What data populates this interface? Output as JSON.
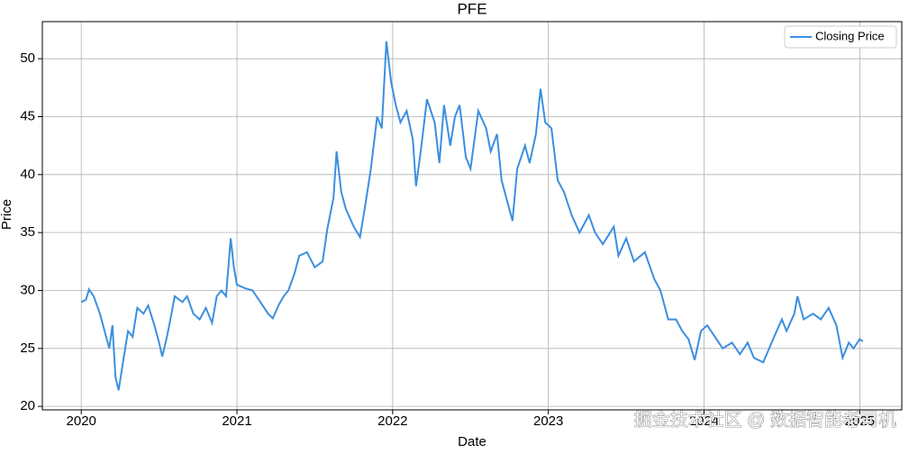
{
  "chart_data": {
    "type": "line",
    "title": "PFE",
    "x_label": "Date",
    "y_label": "Price",
    "x": [
      2020.0,
      2020.03,
      2020.05,
      2020.08,
      2020.12,
      2020.15,
      2020.18,
      2020.2,
      2020.22,
      2020.24,
      2020.27,
      2020.3,
      2020.33,
      2020.36,
      2020.4,
      2020.43,
      2020.47,
      2020.5,
      2020.52,
      2020.55,
      2020.58,
      2020.6,
      2020.65,
      2020.68,
      2020.72,
      2020.76,
      2020.8,
      2020.84,
      2020.87,
      2020.9,
      2020.93,
      2020.96,
      2020.98,
      2021.0,
      2021.05,
      2021.1,
      2021.15,
      2021.2,
      2021.23,
      2021.27,
      2021.3,
      2021.33,
      2021.37,
      2021.4,
      2021.45,
      2021.5,
      2021.55,
      2021.58,
      2021.62,
      2021.64,
      2021.67,
      2021.7,
      2021.75,
      2021.79,
      2021.82,
      2021.86,
      2021.9,
      2021.93,
      2021.96,
      2021.99,
      2022.02,
      2022.05,
      2022.09,
      2022.13,
      2022.15,
      2022.18,
      2022.22,
      2022.27,
      2022.3,
      2022.33,
      2022.37,
      2022.4,
      2022.43,
      2022.47,
      2022.5,
      2022.55,
      2022.6,
      2022.63,
      2022.67,
      2022.7,
      2022.73,
      2022.77,
      2022.8,
      2022.85,
      2022.88,
      2022.92,
      2022.95,
      2022.98,
      2023.02,
      2023.06,
      2023.1,
      2023.15,
      2023.2,
      2023.26,
      2023.3,
      2023.35,
      2023.42,
      2023.45,
      2023.5,
      2023.55,
      2023.62,
      2023.68,
      2023.72,
      2023.77,
      2023.82,
      2023.86,
      2023.9,
      2023.94,
      2023.98,
      2024.02,
      2024.07,
      2024.12,
      2024.18,
      2024.23,
      2024.28,
      2024.32,
      2024.38,
      2024.45,
      2024.5,
      2024.53,
      2024.58,
      2024.6,
      2024.64,
      2024.7,
      2024.75,
      2024.8,
      2024.85,
      2024.89,
      2024.93,
      2024.96,
      2025.0,
      2025.02
    ],
    "series": [
      {
        "name": "Closing Price",
        "color": "#3b8fe0",
        "values": [
          29.0,
          29.2,
          30.1,
          29.5,
          28.0,
          26.5,
          25.0,
          27.0,
          22.5,
          21.4,
          24.0,
          26.5,
          26.0,
          28.5,
          28.0,
          28.7,
          27.0,
          25.5,
          24.3,
          26.0,
          28.0,
          29.5,
          29.0,
          29.5,
          28.0,
          27.5,
          28.5,
          27.2,
          29.5,
          30.0,
          29.5,
          34.5,
          32.0,
          30.5,
          30.2,
          30.0,
          29.0,
          28.0,
          27.6,
          28.8,
          29.5,
          30.0,
          31.5,
          33.0,
          33.3,
          32.0,
          32.5,
          35.3,
          38.0,
          42.0,
          38.5,
          37.0,
          35.5,
          34.6,
          37.0,
          40.5,
          45.0,
          44.0,
          51.5,
          48.0,
          46.0,
          44.5,
          45.5,
          43.0,
          39.0,
          42.0,
          46.5,
          44.5,
          41.0,
          46.0,
          42.5,
          45.0,
          46.0,
          41.5,
          40.5,
          45.5,
          44.0,
          42.0,
          43.5,
          39.5,
          38.0,
          36.0,
          40.5,
          42.5,
          41.0,
          43.5,
          47.4,
          44.5,
          44.0,
          39.5,
          38.5,
          36.5,
          35.0,
          36.5,
          35.0,
          34.0,
          35.5,
          33.0,
          34.5,
          32.5,
          33.3,
          31.0,
          30.0,
          27.5,
          27.5,
          26.5,
          25.8,
          24.0,
          26.5,
          27.0,
          26.0,
          25.0,
          25.5,
          24.5,
          25.5,
          24.2,
          23.8,
          26.0,
          27.5,
          26.5,
          28.0,
          29.5,
          27.5,
          28.0,
          27.5,
          28.5,
          27.0,
          24.2,
          25.5,
          25.0,
          25.8,
          25.6
        ]
      }
    ],
    "xlim": [
      2019.75,
      2025.27
    ],
    "xticks": [
      2020,
      2021,
      2022,
      2023,
      2024,
      2025
    ],
    "ylim": [
      19.7,
      53.2
    ],
    "yticks": [
      20,
      25,
      30,
      35,
      40,
      45,
      50
    ],
    "grid": true,
    "legend": "upper right"
  },
  "watermark": "掘金技术社区 @ 数据智能老司机"
}
